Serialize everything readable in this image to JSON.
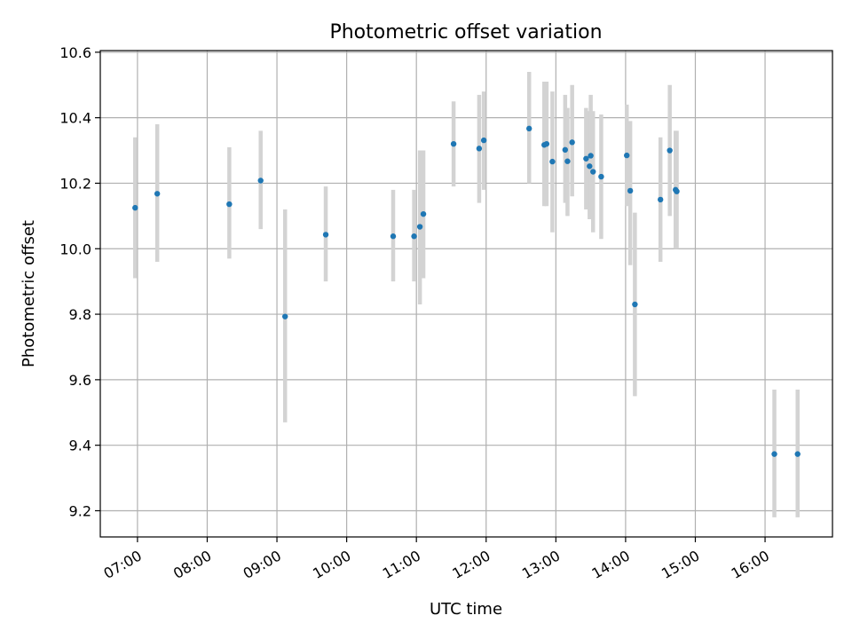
{
  "chart_data": {
    "type": "scatter",
    "title": "Photometric offset variation",
    "xlabel": "UTC time",
    "ylabel": "Photometric offset",
    "x_unit": "UTC time of day",
    "xlim": [
      "06:28",
      "16:58"
    ],
    "ylim": [
      9.12,
      10.605
    ],
    "x_ticks": [
      "07:00",
      "08:00",
      "09:00",
      "10:00",
      "11:00",
      "12:00",
      "13:00",
      "14:00",
      "15:00",
      "16:00"
    ],
    "y_ticks": [
      9.2,
      9.4,
      9.6,
      9.8,
      10.0,
      10.2,
      10.4,
      10.6
    ],
    "y_tick_labels": [
      "9.2",
      "9.4",
      "9.6",
      "9.8",
      "10.0",
      "10.2",
      "10.4",
      "10.6"
    ],
    "grid": true,
    "marker_color": "#1f77b4",
    "errorbar_color": "#d3d3d3",
    "points": [
      {
        "time": "06:58",
        "y": 10.125,
        "low": 9.91,
        "high": 10.34
      },
      {
        "time": "07:17",
        "y": 10.168,
        "low": 9.96,
        "high": 10.38
      },
      {
        "time": "08:19",
        "y": 10.136,
        "low": 9.97,
        "high": 10.31
      },
      {
        "time": "08:46",
        "y": 10.208,
        "low": 10.06,
        "high": 10.36
      },
      {
        "time": "09:07",
        "y": 9.793,
        "low": 9.47,
        "high": 10.12
      },
      {
        "time": "09:42",
        "y": 10.043,
        "low": 9.9,
        "high": 10.19
      },
      {
        "time": "10:40",
        "y": 10.038,
        "low": 9.9,
        "high": 10.18
      },
      {
        "time": "10:58",
        "y": 10.038,
        "low": 9.9,
        "high": 10.18
      },
      {
        "time": "11:03",
        "y": 10.067,
        "low": 9.83,
        "high": 10.3
      },
      {
        "time": "11:06",
        "y": 10.106,
        "low": 9.91,
        "high": 10.3
      },
      {
        "time": "11:32",
        "y": 10.32,
        "low": 10.19,
        "high": 10.45
      },
      {
        "time": "11:54",
        "y": 10.306,
        "low": 10.14,
        "high": 10.47
      },
      {
        "time": "11:58",
        "y": 10.331,
        "low": 10.18,
        "high": 10.48
      },
      {
        "time": "12:37",
        "y": 10.367,
        "low": 10.2,
        "high": 10.54
      },
      {
        "time": "12:50",
        "y": 10.317,
        "low": 10.13,
        "high": 10.51
      },
      {
        "time": "12:52",
        "y": 10.32,
        "low": 10.13,
        "high": 10.51
      },
      {
        "time": "12:57",
        "y": 10.266,
        "low": 10.05,
        "high": 10.48
      },
      {
        "time": "13:08",
        "y": 10.302,
        "low": 10.14,
        "high": 10.47
      },
      {
        "time": "13:10",
        "y": 10.267,
        "low": 10.1,
        "high": 10.43
      },
      {
        "time": "13:14",
        "y": 10.325,
        "low": 10.16,
        "high": 10.5
      },
      {
        "time": "13:26",
        "y": 10.275,
        "low": 10.12,
        "high": 10.43
      },
      {
        "time": "13:29",
        "y": 10.252,
        "low": 10.09,
        "high": 10.42
      },
      {
        "time": "13:30",
        "y": 10.284,
        "low": 10.1,
        "high": 10.47
      },
      {
        "time": "13:32",
        "y": 10.235,
        "low": 10.05,
        "high": 10.42
      },
      {
        "time": "13:39",
        "y": 10.22,
        "low": 10.03,
        "high": 10.41
      },
      {
        "time": "14:01",
        "y": 10.285,
        "low": 10.13,
        "high": 10.44
      },
      {
        "time": "14:04",
        "y": 10.177,
        "low": 9.95,
        "high": 10.39
      },
      {
        "time": "14:08",
        "y": 9.83,
        "low": 9.55,
        "high": 10.11
      },
      {
        "time": "14:30",
        "y": 10.15,
        "low": 9.96,
        "high": 10.34
      },
      {
        "time": "14:38",
        "y": 10.3,
        "low": 10.1,
        "high": 10.5
      },
      {
        "time": "14:43",
        "y": 10.18,
        "low": 10.0,
        "high": 10.36
      },
      {
        "time": "14:44",
        "y": 10.175,
        "low": 10.0,
        "high": 10.36
      },
      {
        "time": "16:08",
        "y": 9.373,
        "low": 9.18,
        "high": 9.57
      },
      {
        "time": "16:28",
        "y": 9.373,
        "low": 9.18,
        "high": 9.57
      }
    ]
  }
}
